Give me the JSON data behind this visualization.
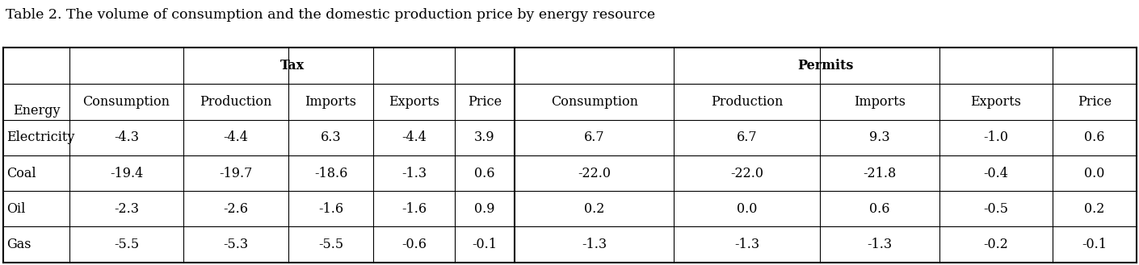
{
  "title": "Table 2. The volume of consumption and the domestic production price by energy resource",
  "col_group1": "Tax",
  "col_group2": "Permits",
  "row_header": "Energy",
  "sub_headers": [
    "Consumption",
    "Production",
    "Imports",
    "Exports",
    "Price"
  ],
  "row_labels": [
    "Electricity",
    "Coal",
    "Oil",
    "Gas"
  ],
  "tax_data": [
    [
      "-4.3",
      "-4.4",
      "6.3",
      "-4.4",
      "3.9"
    ],
    [
      "-19.4",
      "-19.7",
      "-18.6",
      "-1.3",
      "0.6"
    ],
    [
      "-2.3",
      "-2.6",
      "-1.6",
      "-1.6",
      "0.9"
    ],
    [
      "-5.5",
      "-5.3",
      "-5.5",
      "-0.6",
      "-0.1"
    ]
  ],
  "permits_data": [
    [
      "6.7",
      "6.7",
      "9.3",
      "-1.0",
      "0.6"
    ],
    [
      "-22.0",
      "-22.0",
      "-21.8",
      "-0.4",
      "0.0"
    ],
    [
      "0.2",
      "0.0",
      "0.6",
      "-0.5",
      "0.2"
    ],
    [
      "-1.3",
      "-1.3",
      "-1.3",
      "-0.2",
      "-0.1"
    ]
  ],
  "bg_color": "#ffffff",
  "text_color": "#000000",
  "line_color": "#000000",
  "title_fontsize": 12.5,
  "header_fontsize": 11.5,
  "cell_fontsize": 11.5
}
